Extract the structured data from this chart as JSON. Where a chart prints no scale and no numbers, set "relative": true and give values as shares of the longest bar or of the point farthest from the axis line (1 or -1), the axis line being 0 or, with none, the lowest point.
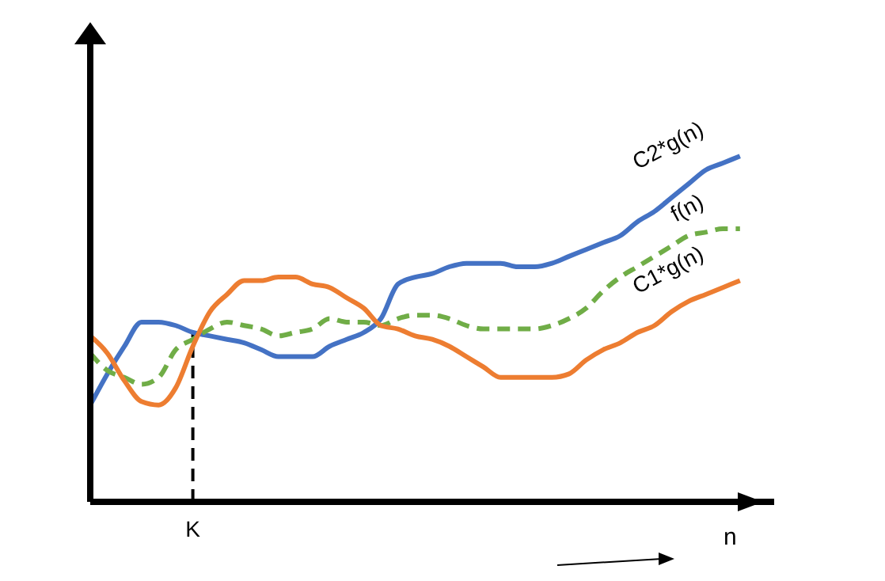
{
  "chart_data": {
    "type": "line",
    "relative": true,
    "legend": false,
    "categories": [
      null,
      null,
      null,
      null,
      null,
      null,
      null,
      null,
      null,
      null,
      null,
      null,
      null,
      null,
      null,
      null,
      null,
      null,
      null,
      null,
      null,
      null,
      null,
      null,
      null,
      null,
      null,
      null,
      null,
      null,
      null,
      null,
      null,
      null,
      null,
      null,
      null,
      null,
      null
    ],
    "xlabel": "n",
    "annotations": [
      "K"
    ],
    "series": [
      {
        "name": "C2*g(n)",
        "color": "#4472c4",
        "line_style": "solid",
        "values": [
          0.28,
          0.37,
          0.45,
          0.52,
          0.52,
          0.51,
          0.49,
          0.48,
          0.47,
          0.46,
          0.44,
          0.42,
          0.42,
          0.42,
          0.45,
          0.47,
          0.49,
          0.53,
          0.63,
          0.65,
          0.66,
          0.68,
          0.69,
          0.69,
          0.69,
          0.68,
          0.68,
          0.69,
          0.71,
          0.73,
          0.75,
          0.77,
          0.81,
          0.84,
          0.88,
          0.92,
          0.96,
          0.98,
          1
        ]
      },
      {
        "name": "f(n)",
        "color": "#70ad47",
        "line_style": "dashed",
        "values": [
          0.43,
          0.38,
          0.36,
          0.34,
          0.36,
          0.44,
          0.47,
          0.5,
          0.52,
          0.51,
          0.5,
          0.48,
          0.49,
          0.5,
          0.53,
          0.52,
          0.52,
          0.51,
          0.53,
          0.54,
          0.54,
          0.53,
          0.51,
          0.5,
          0.5,
          0.5,
          0.5,
          0.51,
          0.53,
          0.56,
          0.61,
          0.65,
          0.68,
          0.71,
          0.74,
          0.77,
          0.78,
          0.79,
          0.79
        ]
      },
      {
        "name": "C1*g(n)",
        "color": "#ed7d31",
        "line_style": "solid",
        "values": [
          0.48,
          0.43,
          0.35,
          0.29,
          0.28,
          0.33,
          0.45,
          0.55,
          0.6,
          0.64,
          0.64,
          0.65,
          0.65,
          0.63,
          0.62,
          0.59,
          0.56,
          0.51,
          0.5,
          0.48,
          0.47,
          0.45,
          0.42,
          0.39,
          0.36,
          0.36,
          0.36,
          0.36,
          0.37,
          0.41,
          0.44,
          0.46,
          0.49,
          0.51,
          0.55,
          0.58,
          0.6,
          0.62,
          0.64
        ]
      }
    ]
  }
}
